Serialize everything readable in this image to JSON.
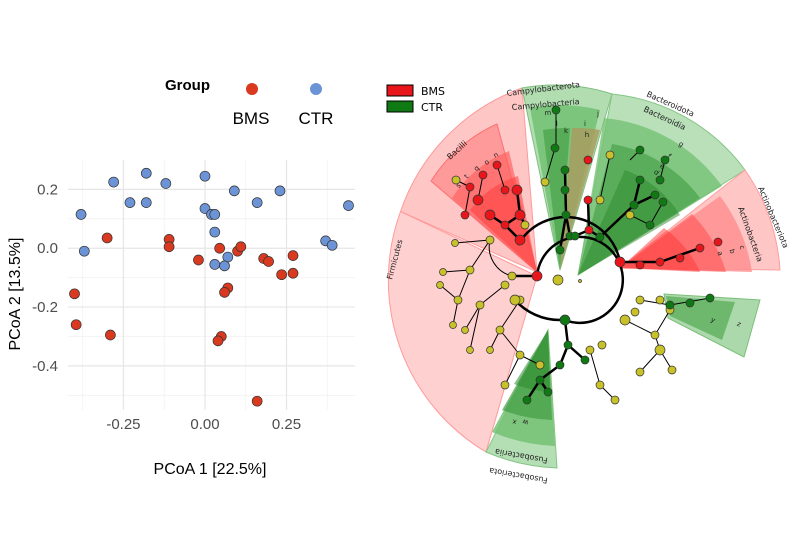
{
  "chart_data": [
    {
      "type": "scatter",
      "title": "",
      "xlabel": "PCoA 1   [22.5%]",
      "ylabel": "PCoA 2   [13.5%]",
      "xlim": [
        -0.42,
        0.46
      ],
      "ylim": [
        -0.55,
        0.3
      ],
      "xticks": [
        "-0.25",
        "0.00",
        "0.25"
      ],
      "xtick_values": [
        -0.25,
        0,
        0.25
      ],
      "yticks": [
        "0.2",
        "0.0",
        "-0.2",
        "-0.4"
      ],
      "ytick_values": [
        0.2,
        0,
        -0.2,
        -0.4
      ],
      "grid": true,
      "legend": {
        "title": "Group",
        "position": "top",
        "entries": [
          {
            "name": "BMS",
            "color": "#d93a1f"
          },
          {
            "name": "CTR",
            "color": "#6b93d6"
          }
        ]
      },
      "series": [
        {
          "name": "BMS",
          "color": "#d93a1f",
          "points": [
            [
              -0.4,
              -0.155
            ],
            [
              -0.395,
              -0.26
            ],
            [
              -0.29,
              -0.295
            ],
            [
              -0.3,
              0.035
            ],
            [
              -0.11,
              0.03
            ],
            [
              -0.11,
              0.005
            ],
            [
              -0.02,
              -0.04
            ],
            [
              0.045,
              0.0
            ],
            [
              0.07,
              -0.135
            ],
            [
              0.06,
              -0.15
            ],
            [
              0.1,
              -0.01
            ],
            [
              0.11,
              0.005
            ],
            [
              0.18,
              -0.035
            ],
            [
              0.195,
              -0.045
            ],
            [
              0.235,
              -0.09
            ],
            [
              0.27,
              -0.025
            ],
            [
              0.27,
              -0.085
            ],
            [
              0.05,
              -0.3
            ],
            [
              0.04,
              -0.315
            ],
            [
              0.16,
              -0.52
            ]
          ]
        },
        {
          "name": "CTR",
          "color": "#6b93d6",
          "points": [
            [
              -0.38,
              0.115
            ],
            [
              -0.37,
              -0.01
            ],
            [
              -0.28,
              0.225
            ],
            [
              -0.23,
              0.155
            ],
            [
              -0.18,
              0.255
            ],
            [
              -0.18,
              0.155
            ],
            [
              -0.12,
              0.22
            ],
            [
              0.0,
              0.245
            ],
            [
              0.0,
              0.135
            ],
            [
              0.02,
              0.115
            ],
            [
              0.03,
              0.115
            ],
            [
              0.03,
              0.055
            ],
            [
              0.03,
              -0.055
            ],
            [
              0.07,
              -0.03
            ],
            [
              0.06,
              -0.06
            ],
            [
              0.09,
              0.195
            ],
            [
              0.16,
              0.155
            ],
            [
              0.23,
              0.195
            ],
            [
              0.37,
              0.025
            ],
            [
              0.39,
              0.01
            ],
            [
              0.44,
              0.145
            ]
          ]
        }
      ]
    },
    {
      "type": "cladogram",
      "legend": [
        {
          "name": "BMS",
          "color": "#e8161b"
        },
        {
          "name": "CTR",
          "color": "#0f7a13"
        }
      ],
      "clades": [
        {
          "name": "Firmicutes",
          "group": "BMS",
          "color": "#ff8d8d"
        },
        {
          "name": "Bacilli",
          "group": "BMS",
          "color": "#ff8d8d"
        },
        {
          "name": "Campylobacterota",
          "group": "CTR",
          "color": "#73c273"
        },
        {
          "name": "Campylobacteria",
          "group": "CTR",
          "color": "#73c273"
        },
        {
          "name": "Bacteroidota",
          "group": "CTR",
          "color": "#73c273"
        },
        {
          "name": "Bacteroidia",
          "group": "CTR",
          "color": "#73c273"
        },
        {
          "name": "Actinobacteriota",
          "group": "BMS",
          "color": "#ff8d8d"
        },
        {
          "name": "Actinobacteria",
          "group": "BMS",
          "color": "#ff8d8d"
        },
        {
          "name": "Fusobacteriota",
          "group": "CTR",
          "color": "#73c273"
        },
        {
          "name": "Fusobacteriia",
          "group": "CTR",
          "color": "#73c273"
        }
      ],
      "letter_labels": [
        "s",
        "t",
        "q",
        "o",
        "n",
        "m",
        "l",
        "k",
        "i",
        "h",
        "j",
        "g",
        "f",
        "e",
        "d",
        "c",
        "b",
        "a",
        "y",
        "z",
        "w",
        "x"
      ]
    }
  ]
}
